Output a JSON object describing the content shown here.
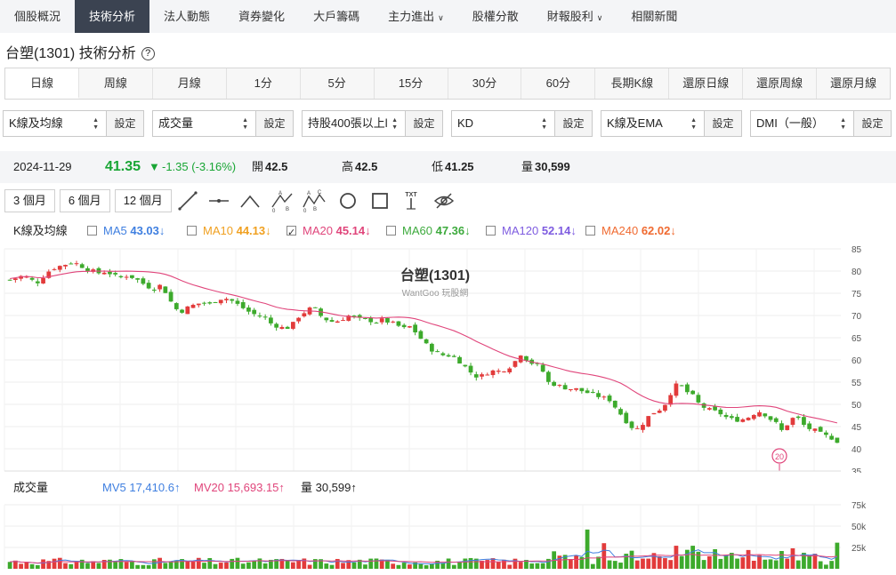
{
  "nav": [
    {
      "label": "個股概況",
      "caret": false
    },
    {
      "label": "技術分析",
      "caret": false,
      "active": true
    },
    {
      "label": "法人動態",
      "caret": false
    },
    {
      "label": "資券變化",
      "caret": false
    },
    {
      "label": "大戶籌碼",
      "caret": false
    },
    {
      "label": "主力進出",
      "caret": true
    },
    {
      "label": "股權分散",
      "caret": false
    },
    {
      "label": "財報股利",
      "caret": true
    },
    {
      "label": "相關新聞",
      "caret": false
    }
  ],
  "page_title": "台塑(1301) 技術分析",
  "help_icon": "?",
  "period_tabs": [
    "日線",
    "周線",
    "月線",
    "1分",
    "5分",
    "15分",
    "30分",
    "60分",
    "長期K線",
    "還原日線",
    "還原周線",
    "還原月線"
  ],
  "selectors": [
    {
      "value": "K線及均線",
      "button": "設定"
    },
    {
      "value": "成交量",
      "button": "設定"
    },
    {
      "value": "持股400張以上l",
      "button": "設定"
    },
    {
      "value": "KD",
      "button": "設定"
    },
    {
      "value": "K線及EMA",
      "button": "設定"
    },
    {
      "value": "DMI（一般）",
      "button": "設定"
    }
  ],
  "quote": {
    "date": "2024-11-29",
    "price": "41.35",
    "change": "-1.35 (-3.16%)",
    "open_label": "開",
    "open": "42.5",
    "high_label": "高",
    "high": "42.5",
    "low_label": "低",
    "low": "41.25",
    "vol_label": "量",
    "vol": "30,599"
  },
  "ranges": [
    "3 個月",
    "6 個月",
    "12 個月"
  ],
  "tool_icons": [
    "line-icon",
    "horizontal-line-icon",
    "arc-icon",
    "abc-pattern-icon",
    "abcd-pattern-icon",
    "circle-icon",
    "rectangle-icon",
    "text-icon",
    "hide-icon"
  ],
  "text_tool_label": "TXT",
  "ma_legend": {
    "title": "K線及均線",
    "items": [
      {
        "name": "MA5",
        "value": "43.03↓",
        "checked": false,
        "color": "#3f7fe0"
      },
      {
        "name": "MA10",
        "value": "44.13↓",
        "checked": false,
        "color": "#f0a020"
      },
      {
        "name": "MA20",
        "value": "45.14↓",
        "checked": true,
        "color": "#e0457b"
      },
      {
        "name": "MA60",
        "value": "47.36↓",
        "checked": false,
        "color": "#3daa3d"
      },
      {
        "name": "MA120",
        "value": "52.14↓",
        "checked": false,
        "color": "#7e5ce0"
      },
      {
        "name": "MA240",
        "value": "62.02↓",
        "checked": false,
        "color": "#f06a30"
      }
    ]
  },
  "watermark": {
    "title": "台塑(1301)",
    "sub": "WantGoo 玩股網",
    "logo_text": "玩股網"
  },
  "marker_label": "20",
  "volume_legend": {
    "title": "成交量",
    "ma5": "MV5 17,410.6↑",
    "ma20": "MV20 15,693.15↑",
    "vol": "量 30,599↑"
  },
  "colors": {
    "up": "#e23b3b",
    "down": "#3daa2c",
    "ma20": "#e0457b",
    "mv5": "#3f7fe0"
  },
  "chart_data": {
    "type": "candlestick",
    "y_ticks": [
      85,
      80,
      75,
      70,
      65,
      60,
      55,
      50,
      45,
      40,
      35
    ],
    "ylim": [
      35,
      85
    ],
    "vol_ticks": [
      "75k",
      "50k",
      "25k"
    ],
    "vol_ylim": [
      0,
      75000
    ],
    "close_path": [
      78,
      78.5,
      79,
      78,
      77.5,
      79,
      80.5,
      81,
      81.5,
      82,
      81.5,
      80.5,
      80,
      79.5,
      80,
      79,
      78.5,
      79,
      78.5,
      77.5,
      76.5,
      76,
      77,
      74,
      71.5,
      71,
      72,
      72.5,
      73,
      72.5,
      73.5,
      74,
      73.5,
      72.5,
      71.5,
      70.5,
      70,
      69.5,
      68,
      67.5,
      67,
      68,
      70,
      71,
      72,
      70,
      69,
      68.5,
      69,
      70,
      69.5,
      69,
      69,
      68.5,
      69,
      68.5,
      68,
      67,
      67.5,
      66,
      64,
      62.5,
      61.5,
      61,
      61,
      60,
      58.5,
      57,
      56,
      57,
      57.5,
      57.5,
      58,
      59,
      61.5,
      60,
      59,
      58.5,
      55,
      54.5,
      54,
      53.5,
      53.5,
      53,
      52.5,
      52,
      51.5,
      51,
      49,
      47,
      45,
      44.5,
      46,
      48,
      48.5,
      50,
      53,
      55,
      53,
      52,
      50,
      49,
      48.5,
      48,
      47,
      46.5,
      46.5,
      47,
      48,
      48.5,
      47,
      46,
      44,
      46,
      47.5,
      45.5,
      44.5,
      44,
      43,
      42.7,
      41.35
    ]
  }
}
